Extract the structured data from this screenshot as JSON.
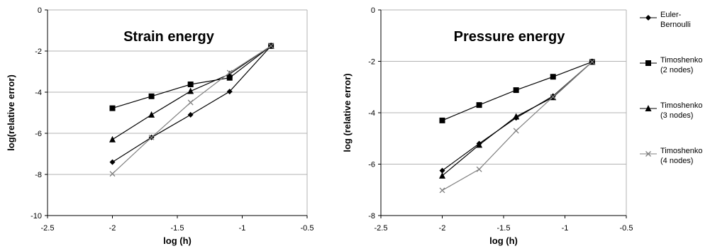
{
  "chart_data": [
    {
      "type": "line",
      "title": "Strain energy",
      "xlabel": "log (h)",
      "ylabel": "log(relative error)",
      "xlim": [
        -2.5,
        -0.5
      ],
      "ylim": [
        -10,
        0
      ],
      "xticks": [
        -2.5,
        -2,
        -1.5,
        -1,
        -0.5
      ],
      "yticks": [
        0,
        -2,
        -4,
        -6,
        -8,
        -10
      ],
      "xtick_labels": [
        "-2.5",
        "-2",
        "-1.5",
        "-1",
        "-0.5"
      ],
      "ytick_labels": [
        "0",
        "-2",
        "-4",
        "-6",
        "-8",
        "-10"
      ],
      "grid": "horizontal",
      "series": [
        {
          "name": "Euler-Bernoulli",
          "marker": "diamond",
          "color": "#000000",
          "x": [
            -2.0,
            -1.699,
            -1.398,
            -1.097,
            -0.778
          ],
          "y": [
            -7.4,
            -6.2,
            -5.1,
            -3.97,
            -1.75
          ]
        },
        {
          "name": "Timoshenko (2 nodes)",
          "marker": "square",
          "color": "#000000",
          "x": [
            -2.0,
            -1.699,
            -1.398,
            -1.097,
            -0.778
          ],
          "y": [
            -4.78,
            -4.2,
            -3.62,
            -3.3,
            -1.75
          ]
        },
        {
          "name": "Timoshenko (3 nodes)",
          "marker": "triangle",
          "color": "#000000",
          "x": [
            -2.0,
            -1.699,
            -1.398,
            -1.097,
            -0.778
          ],
          "y": [
            -6.3,
            -5.1,
            -3.95,
            -3.12,
            -1.75
          ]
        },
        {
          "name": "Timoshenko (4 nodes)",
          "marker": "x",
          "color": "#808080",
          "x": [
            -2.0,
            -1.699,
            -1.398,
            -1.097,
            -0.778
          ],
          "y": [
            -7.97,
            -6.2,
            -4.5,
            -3.05,
            -1.75
          ]
        }
      ]
    },
    {
      "type": "line",
      "title": "Pressure energy",
      "xlabel": "log (h)",
      "ylabel": "log (relative error)",
      "xlim": [
        -2.5,
        -0.5
      ],
      "ylim": [
        -8,
        0
      ],
      "xticks": [
        -2.5,
        -2,
        -1.5,
        -1,
        -0.5
      ],
      "yticks": [
        0,
        -2,
        -4,
        -6,
        -8
      ],
      "xtick_labels": [
        "-2.5",
        "-2",
        "-1.5",
        "-1",
        "-0.5"
      ],
      "ytick_labels": [
        "0",
        "-2",
        "-4",
        "-6",
        "-8"
      ],
      "grid": "horizontal",
      "series": [
        {
          "name": "Euler-Bernoulli",
          "marker": "diamond",
          "color": "#000000",
          "x": [
            -2.0,
            -1.699,
            -1.398,
            -1.097,
            -0.778
          ],
          "y": [
            -6.25,
            -5.2,
            -4.2,
            -3.35,
            -2.02
          ]
        },
        {
          "name": "Timoshenko (2 nodes)",
          "marker": "square",
          "color": "#000000",
          "x": [
            -2.0,
            -1.699,
            -1.398,
            -1.097,
            -0.778
          ],
          "y": [
            -4.3,
            -3.7,
            -3.12,
            -2.6,
            -2.02
          ]
        },
        {
          "name": "Timoshenko (3 nodes)",
          "marker": "triangle",
          "color": "#000000",
          "x": [
            -2.0,
            -1.699,
            -1.398,
            -1.097,
            -0.778
          ],
          "y": [
            -6.45,
            -5.25,
            -4.15,
            -3.4,
            -2.02
          ]
        },
        {
          "name": "Timoshenko (4 nodes)",
          "marker": "x",
          "color": "#808080",
          "x": [
            -2.0,
            -1.699,
            -1.398,
            -1.097,
            -0.778
          ],
          "y": [
            -7.02,
            -6.2,
            -4.7,
            -3.38,
            -2.02
          ]
        }
      ]
    }
  ],
  "legend": {
    "items": [
      {
        "line1": "Euler-",
        "line2": "Bernoulli",
        "marker": "diamond"
      },
      {
        "line1": "Timoshenko",
        "line2": "(2 nodes)",
        "marker": "square"
      },
      {
        "line1": "Timoshenko",
        "line2": "(3 nodes)",
        "marker": "triangle"
      },
      {
        "line1": "Timoshenko",
        "line2": "(4 nodes)",
        "marker": "x"
      }
    ]
  }
}
